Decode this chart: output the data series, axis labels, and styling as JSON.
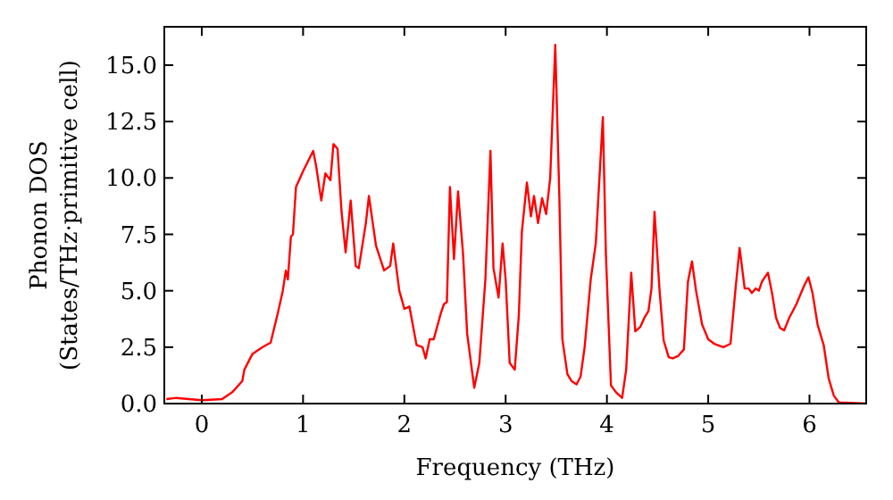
{
  "chart_data": {
    "type": "line",
    "xlabel": "Frequency (THz)",
    "ylabel": "Phonon DOS\n(States/THz·primitive cell)",
    "xlim": [
      -0.37,
      6.56
    ],
    "xticks": [
      0,
      1,
      2,
      3,
      4,
      5,
      6
    ],
    "ylim": [
      0,
      16.7
    ],
    "yticks": [
      {
        "value": 0,
        "label": "0.0"
      },
      {
        "value": 2.5,
        "label": "2.5"
      },
      {
        "value": 5,
        "label": "5.0"
      },
      {
        "value": 7.5,
        "label": "7.5"
      },
      {
        "value": 10,
        "label": "10.0"
      },
      {
        "value": 12.5,
        "label": "12.5"
      },
      {
        "value": 15,
        "label": "15.0"
      }
    ],
    "grid": false,
    "marker": "none",
    "line_style": "solid",
    "series": [
      {
        "color": "#ff0000",
        "x": [
          -0.35,
          -0.25,
          0,
          0.2,
          0.3,
          0.4,
          0.42,
          0.5,
          0.6,
          0.68,
          0.75,
          0.8,
          0.83,
          0.85,
          0.88,
          0.9,
          0.93,
          1.0,
          1.1,
          1.13,
          1.18,
          1.22,
          1.27,
          1.3,
          1.34,
          1.38,
          1.42,
          1.47,
          1.52,
          1.55,
          1.62,
          1.65,
          1.72,
          1.8,
          1.86,
          1.89,
          1.95,
          2.0,
          2.05,
          2.12,
          2.18,
          2.21,
          2.25,
          2.29,
          2.36,
          2.39,
          2.42,
          2.45,
          2.49,
          2.53,
          2.58,
          2.62,
          2.69,
          2.74,
          2.8,
          2.85,
          2.88,
          2.93,
          2.97,
          3.0,
          3.04,
          3.09,
          3.13,
          3.16,
          3.21,
          3.25,
          3.28,
          3.32,
          3.36,
          3.4,
          3.44,
          3.49,
          3.53,
          3.56,
          3.61,
          3.65,
          3.7,
          3.74,
          3.78,
          3.84,
          3.89,
          3.96,
          3.99,
          4.04,
          4.09,
          4.15,
          4.19,
          4.24,
          4.28,
          4.33,
          4.37,
          4.41,
          4.44,
          4.47,
          4.52,
          4.56,
          4.61,
          4.65,
          4.7,
          4.76,
          4.8,
          4.84,
          4.88,
          4.94,
          5.0,
          5.06,
          5.15,
          5.22,
          5.27,
          5.31,
          5.36,
          5.4,
          5.43,
          5.47,
          5.5,
          5.53,
          5.59,
          5.63,
          5.67,
          5.71,
          5.75,
          5.8,
          5.87,
          5.95,
          5.99,
          6.03,
          6.08,
          6.14,
          6.19,
          6.24,
          6.29,
          6.56
        ],
        "values": [
          0.2,
          0.25,
          0.15,
          0.2,
          0.5,
          1.0,
          1.5,
          2.2,
          2.5,
          2.7,
          4.0,
          5.0,
          5.9,
          5.5,
          7.4,
          7.5,
          9.6,
          10.3,
          11.2,
          10.5,
          9.0,
          10.2,
          9.9,
          11.5,
          11.3,
          8.5,
          6.7,
          9.0,
          6.1,
          6.0,
          8.0,
          9.2,
          7.0,
          5.9,
          6.1,
          7.1,
          5.0,
          4.2,
          4.3,
          2.6,
          2.5,
          2.0,
          2.85,
          2.85,
          4.0,
          4.4,
          4.5,
          9.6,
          6.4,
          9.4,
          6.6,
          3.1,
          0.7,
          1.8,
          5.5,
          11.2,
          6.0,
          4.7,
          7.1,
          5.5,
          1.8,
          1.5,
          3.9,
          7.6,
          9.8,
          8.3,
          9.2,
          8.0,
          9.1,
          8.4,
          10.0,
          15.9,
          9.2,
          2.85,
          1.3,
          1.0,
          0.85,
          1.2,
          2.5,
          5.5,
          7.1,
          12.7,
          6.6,
          0.8,
          0.5,
          0.25,
          1.5,
          5.8,
          3.2,
          3.4,
          3.8,
          4.1,
          5.1,
          8.5,
          5.0,
          2.8,
          2.05,
          2.0,
          2.1,
          2.4,
          5.4,
          6.3,
          5.0,
          3.5,
          2.85,
          2.65,
          2.5,
          2.65,
          5.1,
          6.9,
          5.1,
          5.1,
          4.9,
          5.1,
          5.0,
          5.4,
          5.8,
          4.9,
          3.8,
          3.35,
          3.25,
          3.8,
          4.4,
          5.25,
          5.6,
          4.9,
          3.5,
          2.6,
          1.1,
          0.35,
          0.05,
          0
        ]
      }
    ]
  }
}
